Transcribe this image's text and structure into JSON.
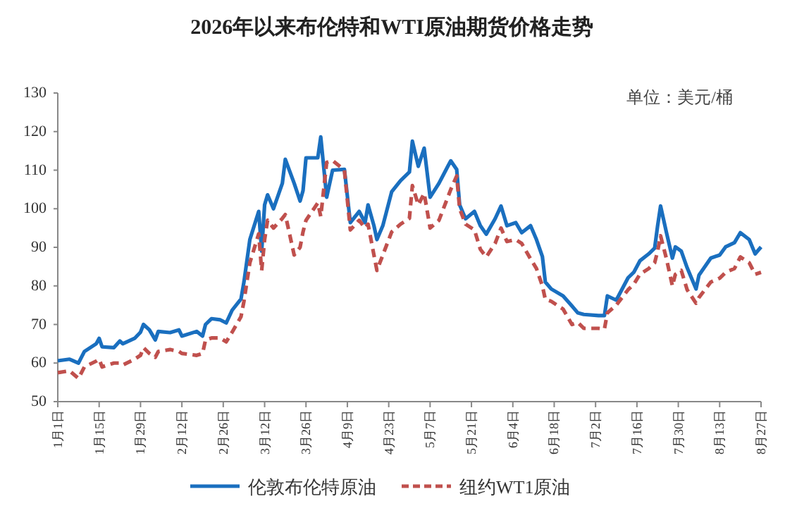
{
  "chart_data": {
    "type": "line",
    "title": "2026年以来布伦特和WTI原油期货价格走势",
    "annotations": [
      "单位：美元/桶"
    ],
    "x": [
      "--01-01",
      "--01-05",
      "--01-08",
      "--01-10",
      "--01-14",
      "--01-15",
      "--01-16",
      "--01-20",
      "--01-22",
      "--01-23",
      "--01-27",
      "--01-29",
      "--01-30",
      "--02-01",
      "--02-03",
      "--02-04",
      "--02-08",
      "--02-11",
      "--02-12",
      "--02-17",
      "--02-19",
      "--02-20",
      "--02-22",
      "--02-25",
      "--02-27",
      "--03-01",
      "--03-04",
      "--03-05",
      "--03-07",
      "--03-10",
      "--03-11",
      "--03-12",
      "--03-13",
      "--03-15",
      "--03-18",
      "--03-19",
      "--03-22",
      "--03-24",
      "--03-25",
      "--03-26",
      "--03-30",
      "--03-31",
      "--04-02",
      "--04-04",
      "--04-08",
      "--04-10",
      "--04-13",
      "--04-15",
      "--04-16",
      "--04-18",
      "--04-19",
      "--04-21",
      "--04-24",
      "--04-27",
      "--04-30",
      "--05-01",
      "--05-03",
      "--05-05",
      "--05-07",
      "--05-10",
      "--05-13",
      "--05-14",
      "--05-16",
      "--05-17",
      "--05-19",
      "--05-22",
      "--05-24",
      "--05-26",
      "--05-29",
      "--05-31",
      "--06-02",
      "--06-05",
      "--06-07",
      "--06-10",
      "--06-12",
      "--06-14",
      "--06-15",
      "--06-17",
      "--06-21",
      "--06-24",
      "--06-26",
      "--06-28",
      "--07-03",
      "--07-05",
      "--07-06",
      "--07-09",
      "--07-13",
      "--07-15",
      "--07-17",
      "--07-20",
      "--07-22",
      "--07-23",
      "--07-24",
      "--07-26",
      "--07-28",
      "--07-29",
      "--07-31",
      "--08-02",
      "--08-05",
      "--08-06",
      "--08-10",
      "--08-13",
      "--08-15",
      "--08-18",
      "--08-20",
      "--08-23",
      "--08-25",
      "--08-27"
    ],
    "xlim": [
      "--01-01",
      "--08-27"
    ],
    "xticks": [
      {
        "value": "--01-01",
        "label": "1月1日"
      },
      {
        "value": "--01-15",
        "label": "1月15日"
      },
      {
        "value": "--01-29",
        "label": "1月29日"
      },
      {
        "value": "--02-12",
        "label": "2月12日"
      },
      {
        "value": "--02-26",
        "label": "2月26日"
      },
      {
        "value": "--03-12",
        "label": "3月12日"
      },
      {
        "value": "--03-26",
        "label": "3月26日"
      },
      {
        "value": "--04-09",
        "label": "4月9日"
      },
      {
        "value": "--04-23",
        "label": "4月23日"
      },
      {
        "value": "--05-07",
        "label": "5月7日"
      },
      {
        "value": "--05-21",
        "label": "5月21日"
      },
      {
        "value": "--06-04",
        "label": "6月4日"
      },
      {
        "value": "--06-18",
        "label": "6月18日"
      },
      {
        "value": "--07-02",
        "label": "7月2日"
      },
      {
        "value": "--07-16",
        "label": "7月16日"
      },
      {
        "value": "--07-30",
        "label": "7月30日"
      },
      {
        "value": "--08-13",
        "label": "8月13日"
      },
      {
        "value": "--08-27",
        "label": "8月27日"
      }
    ],
    "ylim": [
      50,
      130
    ],
    "yticks": [
      50,
      60,
      70,
      80,
      90,
      100,
      110,
      120,
      130
    ],
    "legend": "bottom",
    "series": [
      {
        "name": "伦敦布伦特原油",
        "color": "#1a6fbf",
        "line_style": "solid",
        "values": [
          60.6,
          61,
          60,
          63,
          65,
          66.4,
          64.2,
          64,
          65.7,
          65,
          66.4,
          68,
          70,
          68.6,
          66,
          68.2,
          67.9,
          68.6,
          67,
          68.2,
          67,
          70,
          71.5,
          71.2,
          70.4,
          73.7,
          76.6,
          81,
          92,
          99.3,
          89,
          101,
          103.6,
          100,
          106.6,
          112.8,
          106.6,
          102,
          104.7,
          113.2,
          113.2,
          118.6,
          103,
          110,
          110.2,
          96.4,
          99.3,
          96.4,
          101,
          95.6,
          92,
          95.6,
          104.4,
          107.3,
          109.5,
          117.5,
          111,
          115.7,
          103,
          106.6,
          111,
          112.4,
          110.2,
          101,
          97.4,
          99.3,
          95.6,
          93.4,
          97.4,
          100.7,
          95.6,
          96.4,
          93.8,
          95.6,
          92,
          87.6,
          81,
          79.2,
          77.4,
          74.8,
          73,
          72.6,
          72.3,
          72.3,
          77.4,
          76.3,
          82.1,
          83.6,
          86.5,
          88.3,
          89.8,
          95.6,
          100.7,
          93.8,
          87.2,
          90.1,
          89,
          84.7,
          79.2,
          82.8,
          87.2,
          88,
          90.1,
          91.2,
          93.8,
          92,
          88.3,
          90.1
        ]
      },
      {
        "name": "纽约WT1原油",
        "color": "#c0504d",
        "line_style": "dashed",
        "values": [
          57.5,
          58,
          56,
          59,
          60.5,
          61,
          59,
          60,
          60,
          59.5,
          61,
          62,
          64,
          62.5,
          61.5,
          63,
          63.5,
          63,
          62.5,
          62,
          62.5,
          66,
          66.5,
          66.5,
          65.5,
          68,
          72,
          76,
          86,
          93.5,
          84,
          92,
          97,
          95,
          97.5,
          98.5,
          88,
          90,
          94,
          97,
          101.5,
          98,
          112,
          112.5,
          110,
          94.5,
          97,
          95,
          96,
          88,
          84,
          88,
          94,
          96,
          97.5,
          106,
          101,
          104,
          95,
          97,
          103,
          105,
          108.5,
          100,
          96,
          94.5,
          89.5,
          87.5,
          91,
          95,
          91.5,
          92,
          91,
          87,
          84.5,
          80,
          76.5,
          76,
          74,
          70,
          70.5,
          69,
          69,
          68.8,
          73,
          75,
          79,
          80.5,
          83,
          84.5,
          86,
          89,
          93,
          87,
          80,
          83,
          84,
          79,
          75.5,
          77,
          81,
          82,
          83.5,
          84.5,
          87.5,
          86,
          83,
          83.5
        ]
      }
    ]
  }
}
